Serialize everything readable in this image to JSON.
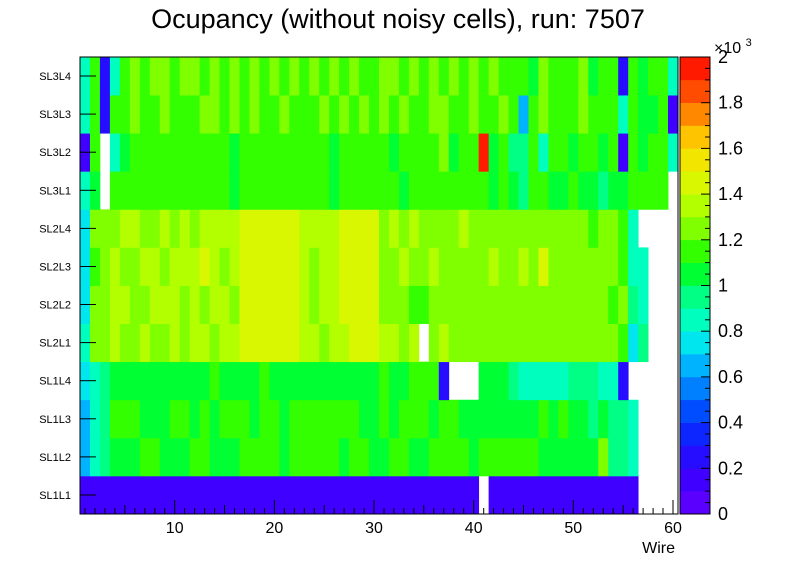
{
  "chart_data": {
    "type": "heatmap",
    "title": "Ocupancy (without noisy cells), run: 7507",
    "xlabel": "Wire",
    "ylabel": "",
    "x_range": [
      0.5,
      60.5
    ],
    "x_ticks": [
      "10",
      "20",
      "30",
      "40",
      "50",
      "60"
    ],
    "layers": [
      "SL1L1",
      "SL1L2",
      "SL1L3",
      "SL1L4",
      "SL2L1",
      "SL2L2",
      "SL2L3",
      "SL2L4",
      "SL3L1",
      "SL3L2",
      "SL3L3",
      "SL3L4"
    ],
    "z_range": [
      0,
      2000
    ],
    "z_ticks": [
      "0",
      "0.2",
      "0.4",
      "0.6",
      "0.8",
      "1",
      "1.2",
      "1.4",
      "1.6",
      "1.8",
      "2"
    ],
    "z_multiplier_label": "×10",
    "z_multiplier_exponent": "3",
    "values": [
      [
        100,
        100,
        100,
        100,
        100,
        100,
        100,
        100,
        100,
        100,
        100,
        100,
        100,
        100,
        100,
        100,
        100,
        100,
        100,
        100,
        100,
        100,
        100,
        100,
        100,
        100,
        100,
        100,
        100,
        100,
        100,
        100,
        100,
        100,
        100,
        100,
        100,
        100,
        100,
        100,
        null,
        100,
        100,
        100,
        100,
        100,
        100,
        100,
        100,
        100,
        100,
        100,
        100,
        100,
        100,
        100,
        null,
        null,
        null,
        null
      ],
      [
        600,
        800,
        900,
        1050,
        1050,
        1050,
        1100,
        1100,
        1050,
        1050,
        1050,
        1100,
        1150,
        1050,
        1050,
        1050,
        1100,
        1100,
        1150,
        1100,
        1050,
        1100,
        1150,
        1150,
        1100,
        1100,
        1050,
        1100,
        1100,
        1050,
        1050,
        1150,
        1150,
        1050,
        1050,
        1150,
        1150,
        1100,
        1150,
        1050,
        1150,
        1100,
        1150,
        1100,
        1100,
        1100,
        1050,
        1050,
        1050,
        1050,
        1050,
        1050,
        1250,
        900,
        900,
        850,
        null,
        null,
        null,
        null
      ],
      [
        650,
        850,
        900,
        1100,
        1100,
        1150,
        1050,
        1050,
        1050,
        1100,
        1150,
        1050,
        1100,
        1050,
        1150,
        1100,
        1100,
        1050,
        1100,
        1150,
        1050,
        1150,
        1100,
        1150,
        1100,
        1100,
        1150,
        1100,
        1050,
        1050,
        1100,
        1050,
        1100,
        1150,
        1100,
        1050,
        1100,
        1100,
        1050,
        1050,
        1050,
        1050,
        1050,
        1050,
        1050,
        1050,
        1150,
        1050,
        1100,
        1050,
        1050,
        900,
        1050,
        900,
        900,
        850,
        null,
        null,
        null,
        null
      ],
      [
        700,
        800,
        900,
        1050,
        1050,
        1050,
        1050,
        1050,
        1050,
        1050,
        1050,
        1050,
        1050,
        1100,
        1050,
        1050,
        1050,
        1050,
        1100,
        1050,
        1050,
        1050,
        1050,
        1050,
        1050,
        1050,
        1050,
        1050,
        1050,
        1050,
        1150,
        1050,
        1050,
        1100,
        1150,
        1100,
        250,
        null,
        null,
        null,
        1050,
        1050,
        1050,
        900,
        850,
        850,
        850,
        850,
        850,
        900,
        900,
        900,
        850,
        850,
        250,
        null,
        null,
        null,
        null,
        null
      ],
      [
        800,
        1200,
        1250,
        1300,
        1250,
        1250,
        1300,
        1250,
        1250,
        1300,
        1250,
        1300,
        1350,
        1250,
        1300,
        1300,
        1400,
        1400,
        1400,
        1400,
        1400,
        1400,
        1300,
        1300,
        1250,
        1300,
        1300,
        1400,
        1400,
        1400,
        1300,
        1300,
        1250,
        1300,
        null,
        1250,
        1300,
        1200,
        1250,
        1250,
        1200,
        1250,
        1200,
        1250,
        1250,
        1250,
        1250,
        1250,
        1200,
        1250,
        1200,
        1200,
        1250,
        1200,
        1150,
        700,
        900,
        null,
        null,
        null
      ],
      [
        750,
        1200,
        1250,
        1300,
        1300,
        1250,
        1250,
        1300,
        1300,
        1300,
        1250,
        1300,
        1250,
        1300,
        1300,
        1250,
        1400,
        1400,
        1400,
        1400,
        1400,
        1400,
        1350,
        1250,
        1300,
        1300,
        1400,
        1400,
        1400,
        1400,
        1250,
        1250,
        1250,
        1150,
        1150,
        1250,
        1200,
        1200,
        1250,
        1200,
        1200,
        1250,
        1200,
        1250,
        1200,
        1250,
        1250,
        1250,
        1250,
        1200,
        1200,
        1200,
        1250,
        1150,
        1200,
        900,
        800,
        null,
        null,
        null
      ],
      [
        750,
        1150,
        1250,
        1300,
        1250,
        1250,
        1300,
        1300,
        1250,
        1300,
        1300,
        1350,
        1400,
        1300,
        1250,
        1300,
        1400,
        1400,
        1400,
        1400,
        1400,
        1400,
        1300,
        1250,
        1300,
        1300,
        1400,
        1400,
        1400,
        1400,
        1250,
        1250,
        1300,
        1200,
        1250,
        1300,
        1250,
        1200,
        1250,
        1250,
        1200,
        1300,
        1250,
        1200,
        1300,
        1250,
        1400,
        1250,
        1200,
        1250,
        1250,
        1250,
        1200,
        1200,
        1150,
        800,
        800,
        null,
        null,
        null
      ],
      [
        750,
        1200,
        1250,
        1250,
        1300,
        1300,
        1250,
        1250,
        1300,
        1250,
        1300,
        1250,
        1300,
        1300,
        1300,
        1300,
        1400,
        1400,
        1400,
        1400,
        1400,
        1400,
        1300,
        1300,
        1300,
        1300,
        1400,
        1400,
        1400,
        1400,
        1250,
        1300,
        1250,
        1300,
        1250,
        1200,
        1250,
        1200,
        1300,
        1250,
        1200,
        1250,
        1250,
        1250,
        1250,
        1250,
        1250,
        1250,
        1250,
        1200,
        1250,
        1150,
        1250,
        1200,
        1150,
        800,
        null,
        null,
        null,
        null
      ],
      [
        800,
        1050,
        null,
        1100,
        1150,
        1100,
        1150,
        1150,
        1100,
        1150,
        1100,
        1150,
        1150,
        1100,
        1150,
        1050,
        1100,
        1150,
        1150,
        1100,
        1100,
        1150,
        1100,
        1150,
        1100,
        1050,
        1150,
        1100,
        1150,
        1100,
        1150,
        1100,
        1050,
        1150,
        1100,
        1100,
        1150,
        1150,
        1100,
        1150,
        1150,
        1050,
        1100,
        1050,
        900,
        1100,
        1150,
        1050,
        1050,
        1100,
        1050,
        1050,
        900,
        1050,
        1050,
        1100,
        1100,
        1100,
        1100,
        null
      ],
      [
        150,
        1150,
        null,
        850,
        1050,
        1150,
        1150,
        1100,
        1150,
        1150,
        1150,
        1150,
        1100,
        1100,
        1100,
        1050,
        1100,
        1150,
        1150,
        1100,
        1150,
        1100,
        1150,
        1150,
        1150,
        1050,
        1150,
        1150,
        1150,
        1100,
        1150,
        1050,
        1150,
        1150,
        1150,
        1100,
        1200,
        1050,
        1150,
        1150,
        1900,
        1050,
        1150,
        900,
        900,
        1100,
        850,
        1100,
        1150,
        1050,
        1100,
        1150,
        1050,
        1150,
        100,
        1100,
        1050,
        1100,
        1100,
        850
      ],
      [
        800,
        1150,
        200,
        1100,
        1150,
        1200,
        1150,
        1150,
        1200,
        1150,
        1150,
        1150,
        1200,
        1200,
        1150,
        1200,
        1150,
        1200,
        1150,
        1150,
        1200,
        1150,
        1150,
        1150,
        1200,
        1150,
        1200,
        1150,
        1200,
        1150,
        1200,
        1150,
        1200,
        1150,
        1150,
        1200,
        1200,
        1150,
        1150,
        1200,
        1150,
        1150,
        1200,
        1150,
        600,
        1150,
        1200,
        1150,
        1100,
        1150,
        1200,
        1150,
        1150,
        1150,
        800,
        1100,
        1050,
        1050,
        1100,
        100
      ],
      [
        850,
        1150,
        200,
        800,
        1150,
        1200,
        1150,
        1200,
        1200,
        1150,
        1200,
        1200,
        1150,
        1200,
        1150,
        1200,
        1150,
        1200,
        1150,
        1200,
        1150,
        1200,
        1150,
        1200,
        1150,
        1200,
        1150,
        1200,
        1150,
        1150,
        1200,
        1200,
        1150,
        1200,
        1150,
        1200,
        1150,
        1200,
        1150,
        1200,
        1150,
        1200,
        1100,
        1150,
        1100,
        1050,
        1200,
        1150,
        1100,
        1150,
        1200,
        1050,
        1150,
        1150,
        200,
        1100,
        1050,
        1150,
        1150,
        850
      ]
    ]
  }
}
